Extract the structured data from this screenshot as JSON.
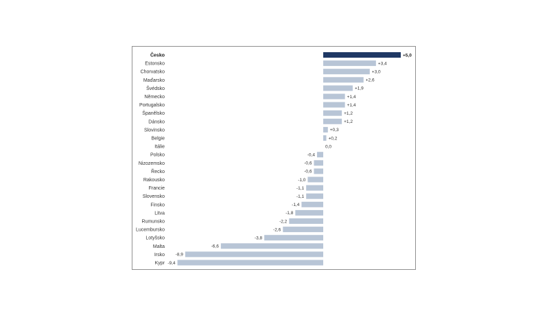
{
  "chart_data": {
    "type": "bar",
    "orientation": "horizontal",
    "title": "",
    "xlabel": "",
    "ylabel": "",
    "xlim": [
      -9.4,
      5.0
    ],
    "grid": false,
    "highlight_category": "Česko",
    "colors": {
      "bar": "#b8c5d6",
      "highlight": "#1f3864"
    },
    "categories": [
      "Česko",
      "Estonsko",
      "Chorvatsko",
      "Maďarsko",
      "Švédsko",
      "Německo",
      "Portugalsko",
      "Španělsko",
      "Dánsko",
      "Slovinsko",
      "Belgie",
      "Itálie",
      "Polsko",
      "Nizozemsko",
      "Řecko",
      "Rakousko",
      "Francie",
      "Slovensko",
      "Finsko",
      "Litva",
      "Rumunsko",
      "Lucembursko",
      "Lotyšsko",
      "Malta",
      "Irsko",
      "Kypr"
    ],
    "values": [
      5.0,
      3.4,
      3.0,
      2.6,
      1.9,
      1.4,
      1.4,
      1.2,
      1.2,
      0.3,
      0.2,
      0.0,
      -0.4,
      -0.6,
      -0.6,
      -1.0,
      -1.1,
      -1.1,
      -1.4,
      -1.8,
      -2.2,
      -2.6,
      -3.8,
      -6.6,
      -8.9,
      -9.4
    ],
    "value_labels": [
      "+5,0",
      "+3,4",
      "+3,0",
      "+2,6",
      "+1,9",
      "+1,4",
      "+1,4",
      "+1,2",
      "+1,2",
      "+0,3",
      "+0,2",
      "0,0",
      "-0,4",
      "-0,6",
      "-0,6",
      "-1,0",
      "-1,1",
      "-1,1",
      "-1,4",
      "-1,8",
      "-2,2",
      "-2,6",
      "-3,8",
      "-6,6",
      "-8,9",
      "-9,4"
    ]
  }
}
